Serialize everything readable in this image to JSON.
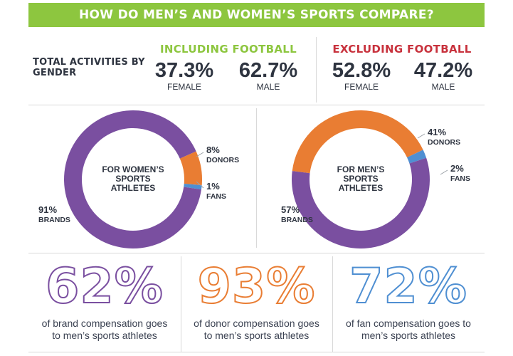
{
  "header": {
    "title": "HOW DO MEN’S AND WOMEN’S SPORTS COMPARE?"
  },
  "colors": {
    "green": "#8dc63f",
    "red": "#c8323d",
    "purple": "#7a4fa0",
    "orange": "#e97d33",
    "blue": "#4f8fd2",
    "dark": "#2e3440"
  },
  "totals": {
    "label": "TOTAL ACTIVITIES BY GENDER",
    "including": {
      "title": "INCLUDING FOOTBALL",
      "female_pct": "37.3%",
      "female_label": "FEMALE",
      "male_pct": "62.7%",
      "male_label": "MALE"
    },
    "excluding": {
      "title": "EXCLUDING FOOTBALL",
      "female_pct": "52.8%",
      "female_label": "FEMALE",
      "male_pct": "47.2%",
      "male_label": "MALE"
    }
  },
  "chart_data": [
    {
      "type": "pie",
      "title": "FOR WOMEN’S SPORTS ATHLETES",
      "title_lines": [
        "FOR WOMEN’S",
        "SPORTS",
        "ATHLETES"
      ],
      "slices": [
        {
          "name": "DONORS",
          "value": 8,
          "label": "8%",
          "color": "#e97d33"
        },
        {
          "name": "FANS",
          "value": 1,
          "label": "1%",
          "color": "#4f8fd2"
        },
        {
          "name": "BRANDS",
          "value": 91,
          "label": "91%",
          "color": "#7a4fa0"
        }
      ]
    },
    {
      "type": "pie",
      "title": "FOR MEN’S SPORTS ATHLETES",
      "title_lines": [
        "FOR MEN’S",
        "SPORTS",
        "ATHLETES"
      ],
      "slices": [
        {
          "name": "DONORS",
          "value": 41,
          "label": "41%",
          "color": "#e97d33"
        },
        {
          "name": "FANS",
          "value": 2,
          "label": "2%",
          "color": "#4f8fd2"
        },
        {
          "name": "BRANDS",
          "value": 57,
          "label": "57%",
          "color": "#7a4fa0"
        }
      ]
    }
  ],
  "stats": [
    {
      "value": "62%",
      "desc_line1": "of brand compensation goes",
      "desc_line2": "to men’s sports athletes",
      "color": "#7a4fa0"
    },
    {
      "value": "93%",
      "desc_line1": "of donor compensation goes",
      "desc_line2": "to men’s sports athletes",
      "color": "#e97d33"
    },
    {
      "value": "72%",
      "desc_line1": "of fan compensation goes to",
      "desc_line2": "men’s sports athletes",
      "color": "#4f8fd2"
    }
  ]
}
